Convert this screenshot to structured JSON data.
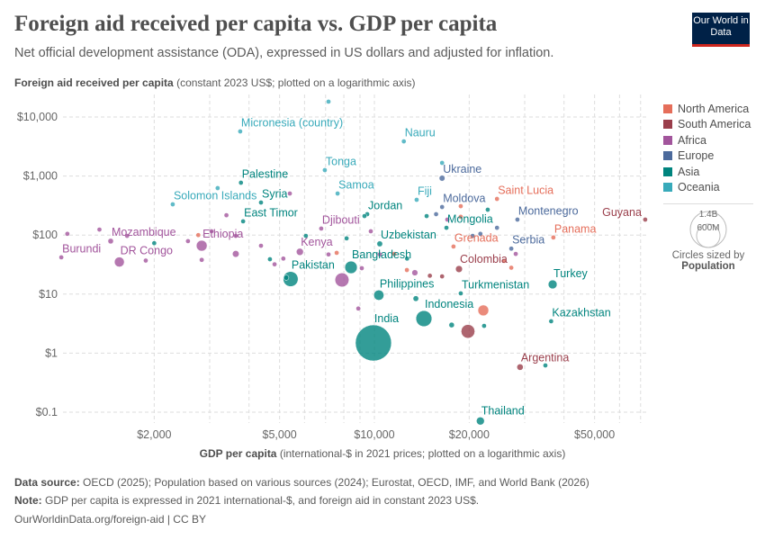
{
  "header": {
    "title": "Foreign aid received per capita vs. GDP per capita",
    "subtitle": "Net official development assistance (ODA), expressed in US dollars and adjusted for inflation.",
    "logo": "Our World in Data"
  },
  "footer": {
    "source_label": "Data source:",
    "source": "OECD (2025); Population based on various sources (2024); Eurostat, OECD, IMF, and World Bank (2026)",
    "note_label": "Note:",
    "note": "GDP per capita is expressed in 2021 international-$, and foreign aid in constant 2023 US$.",
    "url": "OurWorldinData.org/foreign-aid | CC BY"
  },
  "chart_data": {
    "type": "scatter",
    "title": "Foreign aid received per capita vs. GDP per capita",
    "ylabel_bold": "Foreign aid received per capita",
    "ylabel_rest": " (constant 2023 US$; plotted on a logarithmic axis)",
    "xlabel_bold": "GDP per capita",
    "xlabel_rest": " (international-$ in 2021 prices; plotted on a logarithmic axis)",
    "x_scale": "log",
    "y_scale": "log",
    "xlim": [
      930,
      73000
    ],
    "ylim": [
      0.066,
      24000
    ],
    "grid": true,
    "x_ticks": [
      {
        "value": 2000,
        "label": "$2,000"
      },
      {
        "value": 5000,
        "label": "$5,000"
      },
      {
        "value": 10000,
        "label": "$10,000"
      },
      {
        "value": 20000,
        "label": "$20,000"
      },
      {
        "value": 50000,
        "label": "$50,000"
      }
    ],
    "y_ticks": [
      {
        "value": 10000,
        "label": "$10,000"
      },
      {
        "value": 1000,
        "label": "$1,000"
      },
      {
        "value": 100,
        "label": "$100"
      },
      {
        "value": 10,
        "label": "$10"
      },
      {
        "value": 1,
        "label": "$1"
      },
      {
        "value": 0.1,
        "label": "$0.1"
      }
    ],
    "legend_position": "right",
    "regions": [
      {
        "name": "North America",
        "color": "#e56e5a"
      },
      {
        "name": "South America",
        "color": "#9a3e4b"
      },
      {
        "name": "Africa",
        "color": "#a2559c"
      },
      {
        "name": "Europe",
        "color": "#4c6a9c"
      },
      {
        "name": "Asia",
        "color": "#00847e"
      },
      {
        "name": "Oceania",
        "color": "#38aaba"
      }
    ],
    "size_legend": {
      "title": "Circles sized by",
      "variable": "Population",
      "large": "1.4B",
      "small": "600M"
    },
    "points": [
      {
        "name": "Micronesia (country)",
        "region": "Oceania",
        "x": 3750,
        "y": 5700,
        "pop": 0.11,
        "label": true
      },
      {
        "name": "Nauru",
        "region": "Oceania",
        "x": 12400,
        "y": 3870,
        "pop": 0.01,
        "label": true
      },
      {
        "name": "Tonga",
        "region": "Oceania",
        "x": 6960,
        "y": 1260,
        "pop": 0.1,
        "label": true
      },
      {
        "name": "Palestine",
        "region": "Asia",
        "x": 3770,
        "y": 771,
        "pop": 5.4,
        "label": true
      },
      {
        "name": "Samoa",
        "region": "Oceania",
        "x": 7640,
        "y": 506,
        "pop": 0.22,
        "label": true
      },
      {
        "name": "Solomon Islands",
        "region": "Oceania",
        "x": 2290,
        "y": 332,
        "pop": 0.8,
        "label": true
      },
      {
        "name": "Syria",
        "region": "Asia",
        "x": 4365,
        "y": 356,
        "pop": 23,
        "label": true
      },
      {
        "name": "Ukraine",
        "region": "Europe",
        "x": 16400,
        "y": 919,
        "pop": 38,
        "label": true
      },
      {
        "name": "Fiji",
        "region": "Oceania",
        "x": 13620,
        "y": 396,
        "pop": 0.9,
        "label": true
      },
      {
        "name": "Moldova",
        "region": "Europe",
        "x": 16400,
        "y": 299,
        "pop": 3,
        "label": true
      },
      {
        "name": "Saint Lucia",
        "region": "North America",
        "x": 24500,
        "y": 410,
        "pop": 0.18,
        "label": true
      },
      {
        "name": "Jordan",
        "region": "Asia",
        "x": 9490,
        "y": 226,
        "pop": 11,
        "label": true
      },
      {
        "name": "East Timor",
        "region": "Asia",
        "x": 3830,
        "y": 171,
        "pop": 1.4,
        "label": true
      },
      {
        "name": "Montenegro",
        "region": "Europe",
        "x": 28450,
        "y": 183,
        "pop": 0.6,
        "label": true
      },
      {
        "name": "Guyana",
        "region": "South America",
        "x": 72400,
        "y": 183,
        "pop": 0.8,
        "label": true,
        "label_left": true
      },
      {
        "name": "Djibouti",
        "region": "Africa",
        "x": 6780,
        "y": 129,
        "pop": 1.1,
        "label": true
      },
      {
        "name": "Mongolia",
        "region": "Asia",
        "x": 16930,
        "y": 133,
        "pop": 3.5,
        "label": true
      },
      {
        "name": "Panama",
        "region": "North America",
        "x": 37000,
        "y": 91,
        "pop": 4.5,
        "label": true
      },
      {
        "name": "Uzbekistan",
        "region": "Asia",
        "x": 10400,
        "y": 71,
        "pop": 36,
        "label": true
      },
      {
        "name": "Grenada",
        "region": "North America",
        "x": 17830,
        "y": 64,
        "pop": 0.12,
        "label": true
      },
      {
        "name": "Serbia",
        "region": "Europe",
        "x": 27200,
        "y": 59,
        "pop": 6.7,
        "label": true
      },
      {
        "name": "Ethiopia",
        "region": "Africa",
        "x": 2830,
        "y": 66,
        "pop": 130,
        "label": true
      },
      {
        "name": "Kenya",
        "region": "Africa",
        "x": 5800,
        "y": 52,
        "pop": 56,
        "label": true
      },
      {
        "name": "Mozambique",
        "region": "Africa",
        "x": 1455,
        "y": 79,
        "pop": 34,
        "label": true
      },
      {
        "name": "Burundi",
        "region": "Africa",
        "x": 1014,
        "y": 42,
        "pop": 14,
        "label": true
      },
      {
        "name": "DR Congo",
        "region": "Africa",
        "x": 1550,
        "y": 35,
        "pop": 109,
        "label": true
      },
      {
        "name": "Bangladesh",
        "region": "Asia",
        "x": 8430,
        "y": 28.4,
        "pop": 173,
        "label": true
      },
      {
        "name": "Colombia",
        "region": "South America",
        "x": 18560,
        "y": 26.6,
        "pop": 53,
        "label": true
      },
      {
        "name": "Pakistan",
        "region": "Asia",
        "x": 5420,
        "y": 18,
        "pop": 250,
        "label": true
      },
      {
        "name": "Turkey",
        "region": "Asia",
        "x": 36800,
        "y": 14.6,
        "pop": 87,
        "label": true
      },
      {
        "name": "Philippines",
        "region": "Asia",
        "x": 10330,
        "y": 9.6,
        "pop": 116,
        "label": true
      },
      {
        "name": "Turkmenistan",
        "region": "Asia",
        "x": 18800,
        "y": 10.3,
        "pop": 7.4,
        "label": true
      },
      {
        "name": "Indonesia",
        "region": "Asia",
        "x": 14360,
        "y": 3.85,
        "pop": 283,
        "label": true
      },
      {
        "name": "Kazakhstan",
        "region": "Asia",
        "x": 36400,
        "y": 3.47,
        "pop": 20,
        "label": true
      },
      {
        "name": "India",
        "region": "Asia",
        "x": 9930,
        "y": 1.49,
        "pop": 1450,
        "label": true
      },
      {
        "name": "Argentina",
        "region": "South America",
        "x": 29000,
        "y": 0.58,
        "pop": 45,
        "label": true
      },
      {
        "name": "Thailand",
        "region": "Asia",
        "x": 21700,
        "y": 0.071,
        "pop": 71,
        "label": true
      },
      {
        "name": "",
        "region": "Oceania",
        "x": 7150,
        "y": 18200,
        "pop": 0.02
      },
      {
        "name": "",
        "region": "Oceania",
        "x": 3180,
        "y": 625,
        "pop": 0.3
      },
      {
        "name": "",
        "region": "Oceania",
        "x": 16400,
        "y": 1670,
        "pop": 0.1
      },
      {
        "name": "",
        "region": "Africa",
        "x": 5390,
        "y": 506,
        "pop": 2
      },
      {
        "name": "",
        "region": "Africa",
        "x": 3390,
        "y": 217,
        "pop": 5
      },
      {
        "name": "",
        "region": "Africa",
        "x": 1340,
        "y": 124,
        "pop": 4
      },
      {
        "name": "",
        "region": "Africa",
        "x": 1060,
        "y": 105,
        "pop": 2
      },
      {
        "name": "",
        "region": "Africa",
        "x": 1640,
        "y": 97,
        "pop": 3
      },
      {
        "name": "",
        "region": "Africa",
        "x": 2560,
        "y": 79,
        "pop": 10
      },
      {
        "name": "",
        "region": "Africa",
        "x": 2830,
        "y": 38,
        "pop": 25
      },
      {
        "name": "",
        "region": "Africa",
        "x": 3040,
        "y": 116,
        "pop": 3
      },
      {
        "name": "",
        "region": "Africa",
        "x": 3630,
        "y": 97,
        "pop": 5
      },
      {
        "name": "",
        "region": "Africa",
        "x": 4365,
        "y": 66,
        "pop": 8
      },
      {
        "name": "",
        "region": "Africa",
        "x": 3630,
        "y": 48,
        "pop": 50
      },
      {
        "name": "",
        "region": "Africa",
        "x": 4820,
        "y": 32,
        "pop": 12
      },
      {
        "name": "",
        "region": "Africa",
        "x": 5140,
        "y": 40,
        "pop": 6
      },
      {
        "name": "",
        "region": "Africa",
        "x": 7890,
        "y": 17.4,
        "pop": 220
      },
      {
        "name": "",
        "region": "Africa",
        "x": 9120,
        "y": 27.5,
        "pop": 12
      },
      {
        "name": "",
        "region": "Africa",
        "x": 13440,
        "y": 23,
        "pop": 40
      },
      {
        "name": "",
        "region": "Africa",
        "x": 9740,
        "y": 116,
        "pop": 1
      },
      {
        "name": "",
        "region": "Africa",
        "x": 10400,
        "y": 47,
        "pop": 2
      },
      {
        "name": "",
        "region": "Africa",
        "x": 17040,
        "y": 183,
        "pop": 0.5
      },
      {
        "name": "",
        "region": "Africa",
        "x": 28100,
        "y": 48,
        "pop": 1
      },
      {
        "name": "",
        "region": "Africa",
        "x": 7150,
        "y": 47,
        "pop": 3
      },
      {
        "name": "",
        "region": "Africa",
        "x": 8890,
        "y": 5.7,
        "pop": 5
      },
      {
        "name": "",
        "region": "Africa",
        "x": 1880,
        "y": 37,
        "pop": 20
      },
      {
        "name": "",
        "region": "Asia",
        "x": 2000,
        "y": 73,
        "pop": 8
      },
      {
        "name": "",
        "region": "Asia",
        "x": 4660,
        "y": 39,
        "pop": 3
      },
      {
        "name": "",
        "region": "Asia",
        "x": 6060,
        "y": 97,
        "pop": 2
      },
      {
        "name": "",
        "region": "Asia",
        "x": 8160,
        "y": 88,
        "pop": 5
      },
      {
        "name": "",
        "region": "Asia",
        "x": 9300,
        "y": 210,
        "pop": 1
      },
      {
        "name": "",
        "region": "Asia",
        "x": 14650,
        "y": 210,
        "pop": 1
      },
      {
        "name": "",
        "region": "Asia",
        "x": 22900,
        "y": 269,
        "pop": 2
      },
      {
        "name": "",
        "region": "Asia",
        "x": 22300,
        "y": 2.9,
        "pop": 1
      },
      {
        "name": "",
        "region": "Asia",
        "x": 13540,
        "y": 8.4,
        "pop": 35
      },
      {
        "name": "",
        "region": "Asia",
        "x": 17590,
        "y": 3.0,
        "pop": 33
      },
      {
        "name": "",
        "region": "Asia",
        "x": 34900,
        "y": 0.62,
        "pop": 3
      },
      {
        "name": "",
        "region": "Asia",
        "x": 5250,
        "y": 19,
        "pop": 30
      },
      {
        "name": "",
        "region": "Asia",
        "x": 12700,
        "y": 40,
        "pop": 4
      },
      {
        "name": "",
        "region": "Europe",
        "x": 15700,
        "y": 226,
        "pop": 3
      },
      {
        "name": "",
        "region": "Europe",
        "x": 20500,
        "y": 97,
        "pop": 2
      },
      {
        "name": "",
        "region": "Europe",
        "x": 21700,
        "y": 105,
        "pop": 2
      },
      {
        "name": "",
        "region": "Europe",
        "x": 24500,
        "y": 133,
        "pop": 2
      },
      {
        "name": "",
        "region": "North America",
        "x": 18800,
        "y": 309,
        "pop": 0.1
      },
      {
        "name": "",
        "region": "North America",
        "x": 18800,
        "y": 204,
        "pop": 0.1
      },
      {
        "name": "",
        "region": "North America",
        "x": 11560,
        "y": 48,
        "pop": 1
      },
      {
        "name": "",
        "region": "North America",
        "x": 12680,
        "y": 25.6,
        "pop": 10
      },
      {
        "name": "",
        "region": "North America",
        "x": 25800,
        "y": 36.5,
        "pop": 0.4
      },
      {
        "name": "",
        "region": "North America",
        "x": 27200,
        "y": 28,
        "pop": 0.5
      },
      {
        "name": "",
        "region": "North America",
        "x": 2760,
        "y": 100,
        "pop": 1
      },
      {
        "name": "",
        "region": "North America",
        "x": 7590,
        "y": 50,
        "pop": 0.4
      },
      {
        "name": "",
        "region": "North America",
        "x": 22170,
        "y": 5.3,
        "pop": 130
      },
      {
        "name": "",
        "region": "South America",
        "x": 15000,
        "y": 20.5,
        "pop": 12
      },
      {
        "name": "",
        "region": "South America",
        "x": 16400,
        "y": 20,
        "pop": 3
      },
      {
        "name": "",
        "region": "South America",
        "x": 19820,
        "y": 2.34,
        "pop": 210
      }
    ]
  }
}
